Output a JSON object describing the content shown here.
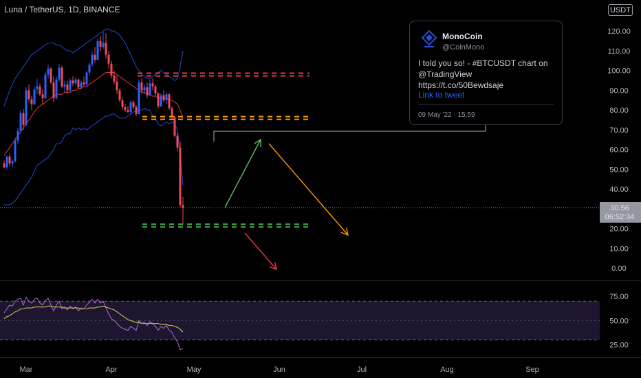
{
  "header": {
    "symbol_title": "Luna / TetherUS, 1D, BINANCE",
    "currency": "USDT"
  },
  "tweet": {
    "name": "MonoCoin",
    "handle": "@CoinMono",
    "text": "I told you so! - #BTCUSDT chart on @TradingView https://t.co/50Bewdsaje",
    "link_label": "Link to tweet",
    "timestamp": "09 May '22 · 15:59"
  },
  "price_tag": {
    "price": "30.56",
    "countdown": "06:52:34",
    "color": "#9598a1"
  },
  "colors": {
    "up_candle": "#2962ff",
    "down_candle": "#ef4a5a",
    "bollinger_band": "#2441c8",
    "bollinger_basis": "#d13232",
    "rsi_line": "#b06ad8",
    "rsi_ma": "#c8c44a",
    "red_level": "#f23645",
    "orange_level": "#ff9800",
    "green_level": "#4caf50"
  },
  "chart_data": {
    "type": "candlestick",
    "title": "Luna / TetherUS, 1D, BINANCE",
    "x_ticks": [
      "Mar",
      "Apr",
      "May",
      "Jun",
      "Jul",
      "Aug",
      "Sep"
    ],
    "price_axis": {
      "ticks": [
        0,
        10,
        20,
        30,
        40,
        50,
        60,
        70,
        80,
        90,
        100,
        110,
        120
      ],
      "tick_labels": [
        "0.00",
        "10.00",
        "20.00",
        "30.00",
        "40.00",
        "50.00",
        "60.00",
        "70.00",
        "80.00",
        "90.00",
        "100.00",
        "110.00",
        "120.00"
      ],
      "range": [
        -6,
        126
      ]
    },
    "candles_start": "2022-02-21",
    "candles": [
      [
        53.0,
        54.5,
        50.5,
        51.0
      ],
      [
        51.0,
        57.0,
        50.0,
        56.5
      ],
      [
        56.5,
        58.0,
        51.5,
        53.0
      ],
      [
        53.0,
        55.0,
        51.0,
        54.0
      ],
      [
        54.0,
        66.0,
        53.5,
        64.5
      ],
      [
        64.5,
        71.0,
        63.0,
        69.5
      ],
      [
        69.5,
        80.0,
        68.0,
        78.5
      ],
      [
        78.5,
        80.5,
        70.0,
        72.5
      ],
      [
        72.5,
        91.5,
        72.0,
        90.0
      ],
      [
        90.0,
        93.0,
        84.0,
        85.5
      ],
      [
        85.5,
        87.0,
        80.0,
        83.0
      ],
      [
        83.0,
        92.0,
        82.5,
        90.5
      ],
      [
        90.5,
        96.0,
        88.0,
        92.0
      ],
      [
        92.0,
        93.5,
        87.0,
        88.0
      ],
      [
        88.0,
        90.5,
        83.0,
        86.0
      ],
      [
        86.0,
        99.5,
        85.5,
        98.0
      ],
      [
        98.0,
        103.0,
        96.0,
        101.0
      ],
      [
        101.0,
        102.0,
        93.0,
        94.0
      ],
      [
        94.0,
        97.0,
        84.0,
        86.0
      ],
      [
        86.0,
        97.0,
        85.5,
        95.5
      ],
      [
        95.5,
        103.5,
        94.5,
        101.5
      ],
      [
        101.5,
        102.5,
        91.0,
        92.0
      ],
      [
        92.0,
        95.0,
        89.0,
        93.0
      ],
      [
        93.0,
        95.0,
        88.5,
        90.0
      ],
      [
        90.0,
        96.0,
        89.0,
        95.0
      ],
      [
        95.0,
        97.0,
        92.0,
        93.5
      ],
      [
        93.5,
        96.5,
        92.5,
        95.5
      ],
      [
        95.5,
        96.0,
        90.5,
        91.5
      ],
      [
        91.5,
        95.0,
        90.5,
        94.0
      ],
      [
        94.0,
        97.0,
        92.0,
        93.0
      ],
      [
        93.0,
        100.0,
        92.5,
        99.0
      ],
      [
        99.0,
        104.0,
        97.5,
        103.0
      ],
      [
        103.0,
        109.5,
        102.0,
        108.0
      ],
      [
        108.0,
        112.0,
        104.0,
        105.5
      ],
      [
        105.5,
        116.0,
        105.0,
        115.0
      ],
      [
        115.0,
        117.5,
        110.0,
        112.0
      ],
      [
        112.0,
        119.5,
        111.0,
        114.0
      ],
      [
        114.0,
        119.0,
        106.0,
        108.0
      ],
      [
        108.0,
        110.0,
        101.0,
        103.5
      ],
      [
        103.5,
        105.0,
        96.0,
        97.5
      ],
      [
        97.5,
        100.0,
        93.0,
        94.5
      ],
      [
        94.5,
        97.5,
        88.0,
        90.0
      ],
      [
        90.0,
        91.0,
        84.0,
        85.0
      ],
      [
        85.0,
        86.5,
        80.0,
        81.5
      ],
      [
        81.5,
        83.0,
        79.0,
        80.0
      ],
      [
        80.0,
        82.0,
        78.5,
        79.0
      ],
      [
        79.0,
        85.0,
        78.0,
        84.0
      ],
      [
        84.0,
        85.0,
        80.5,
        81.5
      ],
      [
        81.5,
        82.5,
        77.0,
        78.0
      ],
      [
        78.0,
        95.5,
        77.5,
        94.0
      ],
      [
        94.0,
        96.0,
        88.5,
        90.0
      ],
      [
        90.0,
        93.0,
        88.0,
        91.5
      ],
      [
        91.5,
        94.0,
        86.0,
        87.5
      ],
      [
        87.5,
        95.5,
        87.0,
        93.5
      ],
      [
        93.5,
        96.0,
        90.0,
        92.0
      ],
      [
        92.0,
        93.0,
        87.0,
        88.5
      ],
      [
        88.5,
        89.0,
        81.0,
        82.0
      ],
      [
        82.0,
        88.5,
        81.5,
        87.5
      ],
      [
        87.5,
        90.0,
        84.0,
        85.0
      ],
      [
        85.0,
        89.0,
        83.0,
        88.0
      ],
      [
        88.0,
        88.5,
        80.0,
        81.0
      ],
      [
        81.0,
        82.0,
        75.5,
        76.5
      ],
      [
        76.5,
        77.5,
        66.0,
        67.0
      ],
      [
        67.0,
        68.5,
        59.0,
        61.0
      ],
      [
        61.0,
        64.0,
        30.56,
        32.0
      ],
      [
        32.0,
        36.0,
        22.0,
        30.56
      ]
    ],
    "bollinger": {
      "upper": [
        82,
        86,
        90,
        93,
        96,
        98,
        100,
        102,
        104,
        106,
        108,
        109,
        110,
        111,
        112,
        113,
        114,
        114,
        114,
        113,
        113,
        112,
        111,
        110,
        110,
        109,
        110,
        111,
        112,
        113,
        114,
        115,
        116,
        117,
        118,
        119,
        120,
        121,
        121,
        120,
        120,
        119,
        118,
        116,
        114,
        111,
        108,
        105,
        102,
        100,
        98,
        97,
        96,
        96,
        97,
        98,
        99,
        100,
        99,
        98,
        97,
        96,
        95,
        96,
        102,
        110
      ],
      "basis": [
        57,
        59,
        61,
        63,
        65,
        67,
        69,
        71,
        73,
        75,
        77,
        79,
        81,
        82,
        83,
        84,
        85,
        86,
        87,
        88,
        88,
        88,
        89,
        89,
        89,
        90,
        90,
        91,
        91,
        92,
        92,
        93,
        94,
        95,
        96,
        97,
        98,
        99,
        99,
        99,
        99,
        98,
        97,
        96,
        95,
        94,
        93,
        92,
        91,
        90,
        89,
        89,
        88,
        88,
        87,
        87,
        86,
        86,
        86,
        86,
        85,
        85,
        84,
        83,
        80,
        76
      ],
      "lower": [
        32,
        32,
        32,
        33,
        34,
        36,
        38,
        40,
        42,
        44,
        46,
        49,
        52,
        53,
        54,
        55,
        56,
        58,
        60,
        63,
        63,
        64,
        67,
        68,
        68,
        71,
        70,
        71,
        70,
        71,
        70,
        71,
        72,
        73,
        74,
        75,
        76,
        77,
        77,
        78,
        78,
        77,
        76,
        76,
        76,
        77,
        78,
        79,
        80,
        80,
        80,
        81,
        80,
        80,
        77,
        76,
        73,
        72,
        73,
        74,
        73,
        74,
        73,
        70,
        58,
        42
      ]
    },
    "levels": [
      {
        "color": "red",
        "value": 98
      },
      {
        "color": "orange",
        "value": 76
      },
      {
        "color": "green",
        "value": 21.5
      }
    ],
    "projection_arrows": [
      "green-up",
      "orange-down",
      "red-down"
    ],
    "rsi": {
      "ticks": [
        25,
        50,
        75
      ],
      "tick_labels": [
        "25.00",
        "50.00",
        "75.00"
      ],
      "upper_band": 70,
      "lower_band": 30,
      "values": [
        58,
        62,
        66,
        65,
        70,
        72,
        73,
        66,
        74,
        70,
        68,
        72,
        73,
        68,
        66,
        71,
        73,
        66,
        60,
        66,
        70,
        62,
        64,
        61,
        65,
        62,
        64,
        60,
        63,
        62,
        66,
        69,
        72,
        68,
        72,
        68,
        70,
        63,
        57,
        52,
        50,
        47,
        44,
        42,
        41,
        40,
        44,
        42,
        40,
        50,
        47,
        48,
        45,
        49,
        47,
        44,
        40,
        44,
        42,
        45,
        40,
        38,
        32,
        28,
        20,
        21
      ],
      "ma": [
        52,
        54,
        55,
        57,
        59,
        60,
        62,
        62,
        63,
        63,
        63,
        64,
        64,
        64,
        64,
        64,
        65,
        65,
        64,
        64,
        64,
        64,
        63,
        63,
        63,
        63,
        63,
        63,
        62,
        62,
        62,
        63,
        63,
        63,
        64,
        64,
        65,
        64,
        63,
        62,
        61,
        59,
        57,
        55,
        53,
        51,
        50,
        49,
        48,
        48,
        47,
        47,
        47,
        47,
        47,
        47,
        47,
        46,
        46,
        46,
        45,
        45,
        44,
        43,
        41,
        38
      ]
    }
  }
}
